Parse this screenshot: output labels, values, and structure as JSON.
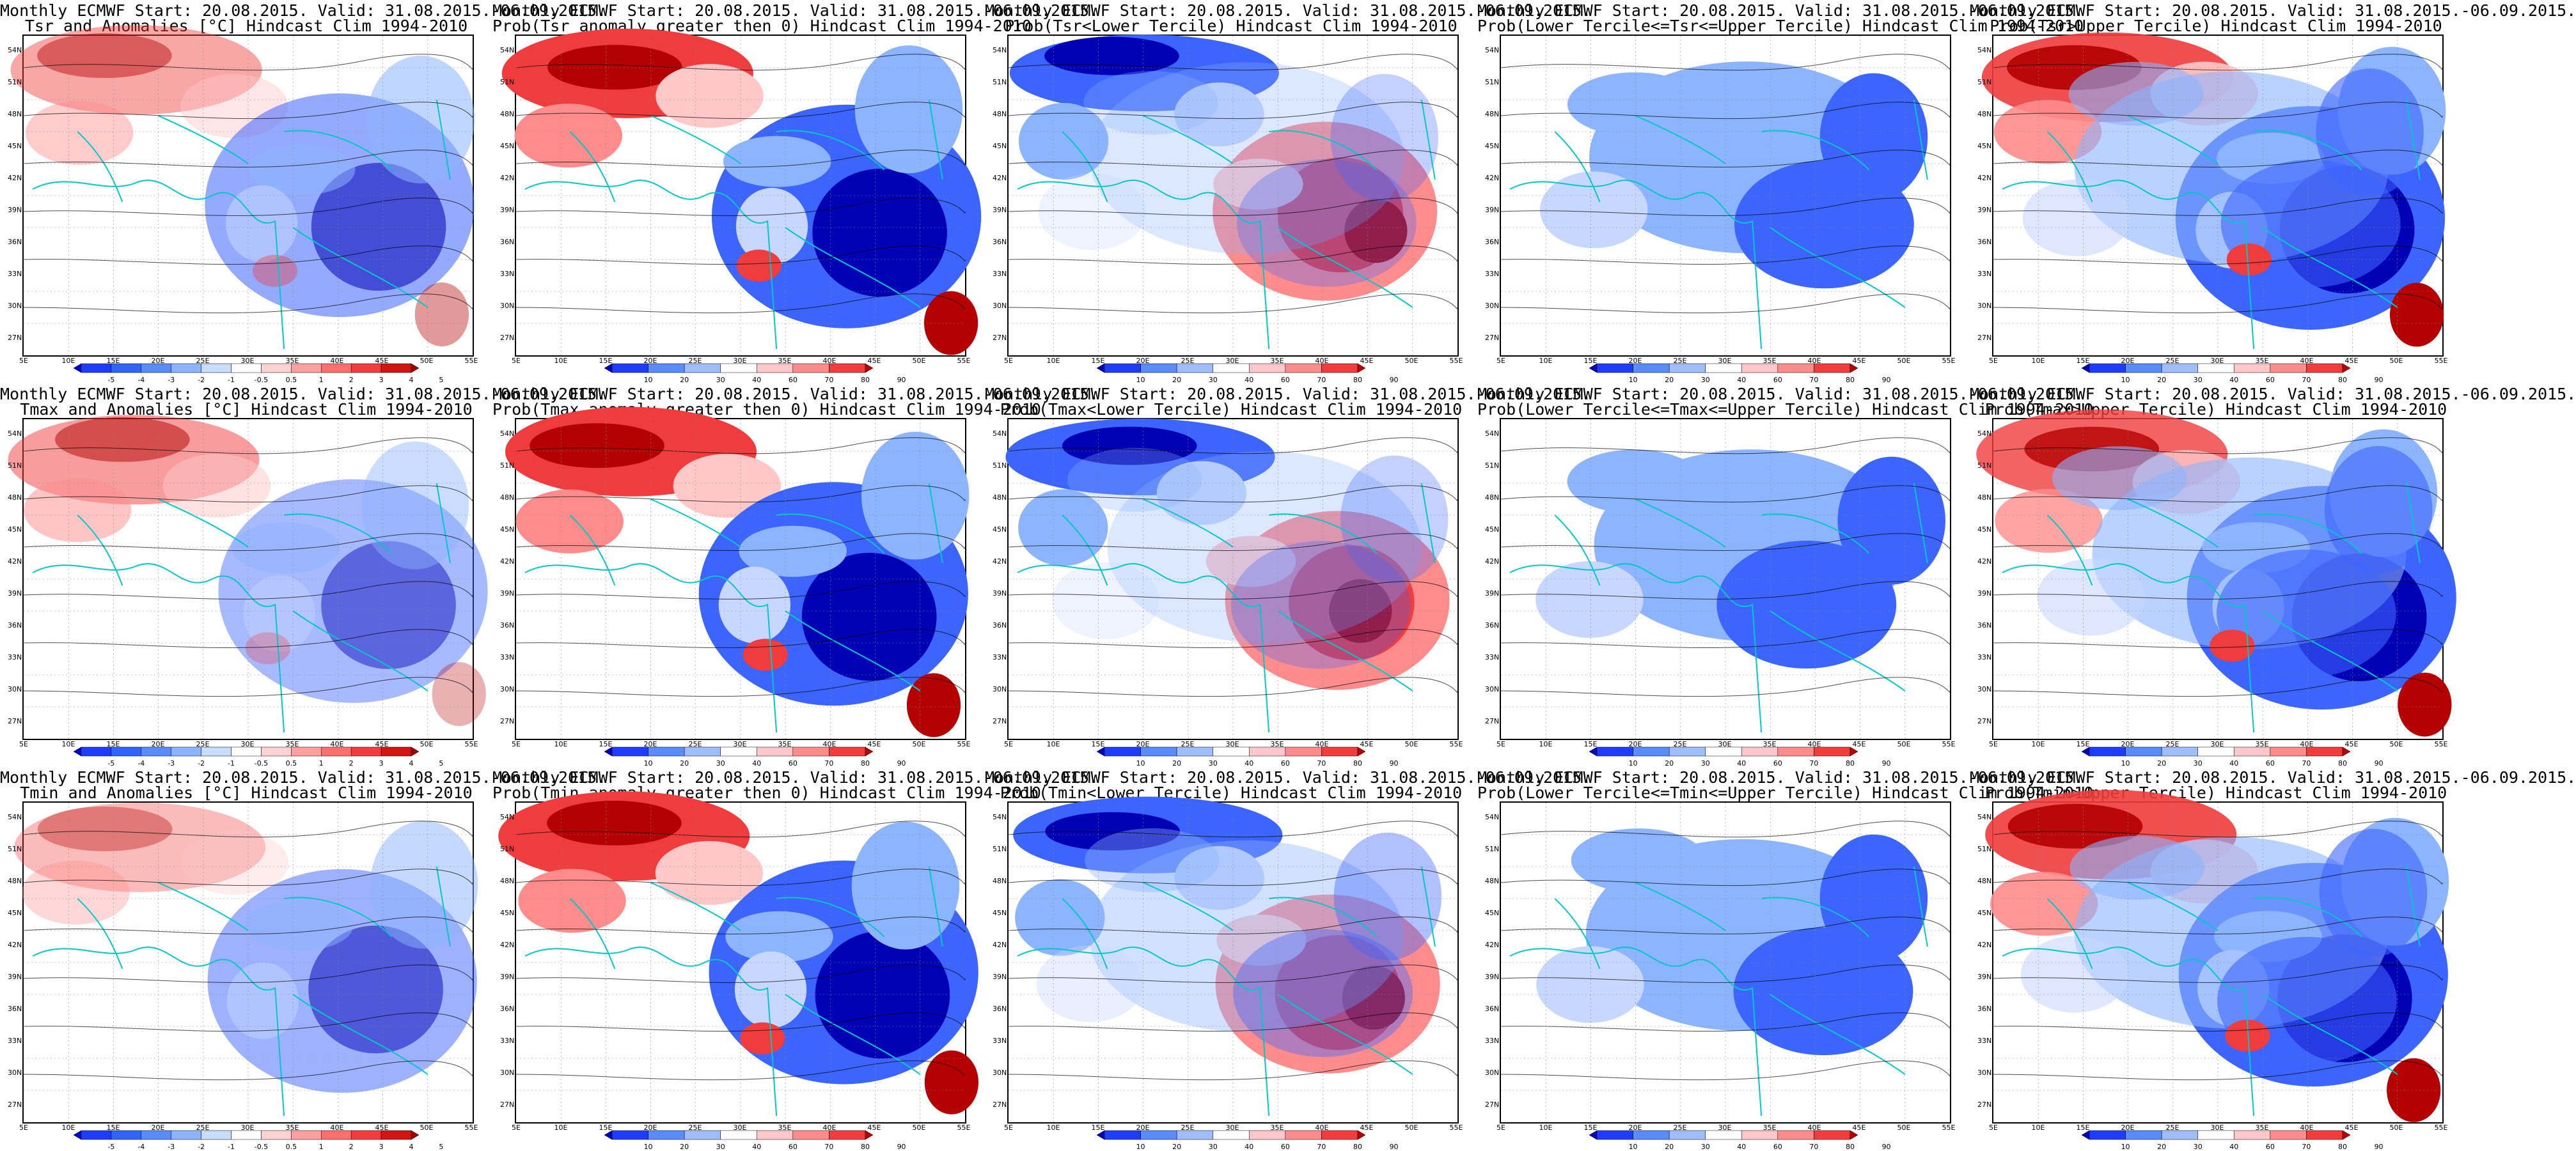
{
  "panels": [
    {
      "title1": "Monthly ECMWF Start: 20.08.2015. Valid: 31.08.2015.-06.09.2015.",
      "title2": "Tsr and Anomalies [°C] Hindcast Clim 1994-2010",
      "scale": "anom",
      "map": "anom_tsr"
    },
    {
      "title1": "Monthly ECMWF Start: 20.08.2015. Valid: 31.08.2015.-06.09.2015.",
      "title2": "Prob(Tsr anomaly greater then 0) Hindcast Clim 1994-2010",
      "scale": "prob",
      "map": "gt0_tsr"
    },
    {
      "title1": "Monthly ECMWF Start: 20.08.2015. Valid: 31.08.2015.-06.09.2015.",
      "title2": "Prob(Tsr<Lower Tercile) Hindcast Clim 1994-2010",
      "scale": "prob",
      "map": "lower_tsr"
    },
    {
      "title1": "Monthly ECMWF Start: 20.08.2015. Valid: 31.08.2015.-06.09.2015.",
      "title2": "Prob(Lower Tercile<=Tsr<=Upper Tercile) Hindcast Clim 1994-2010",
      "scale": "prob",
      "map": "middle_tsr"
    },
    {
      "title1": "Monthly ECMWF Start: 20.08.2015. Valid: 31.08.2015.-06.09.2015.",
      "title2": "Prob(Tsr>Upper Tercile) Hindcast Clim 1994-2010",
      "scale": "prob",
      "map": "upper_tsr"
    },
    {
      "title1": "Monthly ECMWF Start: 20.08.2015. Valid: 31.08.2015.-06.09.2015.",
      "title2": "Tmax and Anomalies [°C] Hindcast Clim 1994-2010",
      "scale": "anom",
      "map": "anom_tmax"
    },
    {
      "title1": "Monthly ECMWF Start: 20.08.2015. Valid: 31.08.2015.-06.09.2015.",
      "title2": "Prob(Tmax anomaly greater then 0) Hindcast Clim 1994-2010",
      "scale": "prob",
      "map": "gt0_tmax"
    },
    {
      "title1": "Monthly ECMWF Start: 20.08.2015. Valid: 31.08.2015.-06.09.2015.",
      "title2": "Prob(Tmax<Lower Tercile) Hindcast Clim 1994-2010",
      "scale": "prob",
      "map": "lower_tmax"
    },
    {
      "title1": "Monthly ECMWF Start: 20.08.2015. Valid: 31.08.2015.-06.09.2015.",
      "title2": "Prob(Lower Tercile<=Tmax<=Upper Tercile) Hindcast Clim 1994-2010",
      "scale": "prob",
      "map": "middle_tmax"
    },
    {
      "title1": "Monthly ECMWF Start: 20.08.2015. Valid: 31.08.2015.-06.09.2015.",
      "title2": "Prob(Tmax>Upper Tercile) Hindcast Clim 1994-2010",
      "scale": "prob",
      "map": "upper_tmax"
    },
    {
      "title1": "Monthly ECMWF Start: 20.08.2015. Valid: 31.08.2015.-06.09.2015.",
      "title2": "Tmin and Anomalies [°C] Hindcast Clim 1994-2010",
      "scale": "anom",
      "map": "anom_tmin"
    },
    {
      "title1": "Monthly ECMWF Start: 20.08.2015. Valid: 31.08.2015.-06.09.2015.",
      "title2": "Prob(Tmin anomaly greater then 0) Hindcast Clim 1994-2010",
      "scale": "prob",
      "map": "gt0_tmin"
    },
    {
      "title1": "Monthly ECMWF Start: 20.08.2015. Valid: 31.08.2015.-06.09.2015.",
      "title2": "Prob(Tmin<Lower Tercile) Hindcast Clim 1994-2010",
      "scale": "prob",
      "map": "lower_tmin"
    },
    {
      "title1": "Monthly ECMWF Start: 20.08.2015. Valid: 31.08.2015.-06.09.2015.",
      "title2": "Prob(Lower Tercile<=Tmin<=Upper Tercile) Hindcast Clim 1994-2010",
      "scale": "prob",
      "map": "middle_tmin"
    },
    {
      "title1": "Monthly ECMWF Start: 20.08.2015. Valid: 31.08.2015.-06.09.2015.",
      "title2": "Prob(Tmin>Upper Tercile) Hindcast Clim 1994-2010",
      "scale": "prob",
      "map": "upper_tmin"
    }
  ],
  "lat_labels": [
    "54N",
    "51N",
    "48N",
    "45N",
    "42N",
    "39N",
    "36N",
    "33N",
    "30N",
    "27N"
  ],
  "lon_labels": [
    "5E",
    "10E",
    "15E",
    "20E",
    "25E",
    "30E",
    "35E",
    "40E",
    "45E",
    "50E",
    "55E"
  ],
  "scales": {
    "anom": {
      "ticks": [
        "-5",
        "-4",
        "-3",
        "-2",
        "-1",
        "-0.5",
        "0.5",
        "1",
        "2",
        "3",
        "4",
        "5"
      ],
      "colors": [
        "#0000c8",
        "#1e3cff",
        "#3264ff",
        "#5a8cff",
        "#8cb4ff",
        "#c8dcff",
        "#ffffff",
        "#ffd2d2",
        "#ffa0a0",
        "#ff6e6e",
        "#f03c3c",
        "#d21414",
        "#a00000"
      ]
    },
    "prob": {
      "ticks": [
        "10",
        "20",
        "30",
        "40",
        "60",
        "70",
        "80",
        "90"
      ],
      "colors": [
        "#0000b4",
        "#1e3cff",
        "#5a8cff",
        "#a0beff",
        "#ffffff",
        "#ffc8c8",
        "#ff8c8c",
        "#f03c3c",
        "#b40000"
      ]
    }
  },
  "colors": {
    "coastline": "#00c8c8",
    "contour": "#000000",
    "frame": "#000000"
  }
}
